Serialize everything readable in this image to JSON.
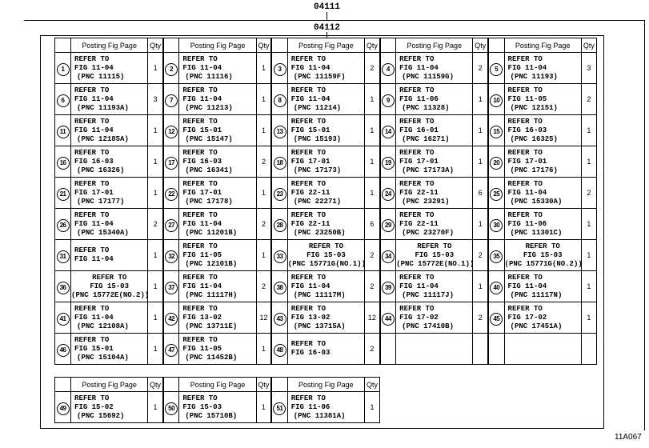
{
  "labels": {
    "top_code": "04111",
    "inner_code": "04112",
    "figure_id": "11A067"
  },
  "headers": {
    "posting": "Posting Fig Page",
    "qty": "Qty"
  },
  "main_rows": [
    [
      {
        "n": "1",
        "lines": [
          "REFER TO",
          "FIG 11-04",
          "(PNC 11115)"
        ],
        "qty": "1"
      },
      {
        "n": "2",
        "lines": [
          "REFER TO",
          "FIG 11-04",
          "(PNC 11116)"
        ],
        "qty": "1"
      },
      {
        "n": "3",
        "lines": [
          "REFER TO",
          "FIG 11-04",
          "(PNC 11159F)"
        ],
        "qty": "2"
      },
      {
        "n": "4",
        "lines": [
          "REFER TO",
          "FIG 11-04",
          "(PNC 11159G)"
        ],
        "qty": "2"
      },
      {
        "n": "5",
        "lines": [
          "REFER TO",
          "FIG 11-04",
          "(PNC 11193)"
        ],
        "qty": "3"
      }
    ],
    [
      {
        "n": "6",
        "lines": [
          "REFER TO",
          "FIG 11-04",
          "(PNC 11193A)"
        ],
        "qty": "3"
      },
      {
        "n": "7",
        "lines": [
          "REFER TO",
          "FIG 11-04",
          "(PNC 11213)"
        ],
        "qty": "1"
      },
      {
        "n": "8",
        "lines": [
          "REFER TO",
          "FIG 11-04",
          "(PNC 11214)"
        ],
        "qty": "1"
      },
      {
        "n": "9",
        "lines": [
          "REFER TO",
          "FIG 11-06",
          "(PNC 11328)"
        ],
        "qty": "1"
      },
      {
        "n": "10",
        "lines": [
          "REFER TO",
          "FIG 11-05",
          "(PNC 12151)"
        ],
        "qty": "2"
      }
    ],
    [
      {
        "n": "11",
        "lines": [
          "REFER TO",
          "FIG 11-04",
          "(PNC 12185A)"
        ],
        "qty": "1"
      },
      {
        "n": "12",
        "lines": [
          "REFER TO",
          "FIG 15-01",
          "(PNC 15147)"
        ],
        "qty": "1"
      },
      {
        "n": "13",
        "lines": [
          "REFER TO",
          "FIG 15-01",
          "(PNC 15193)"
        ],
        "qty": "1"
      },
      {
        "n": "14",
        "lines": [
          "REFER TO",
          "FIG 16-01",
          "(PNC 16271)"
        ],
        "qty": "1"
      },
      {
        "n": "15",
        "lines": [
          "REFER TO",
          "FIG 16-03",
          "(PNC 16325)"
        ],
        "qty": "1"
      }
    ],
    [
      {
        "n": "16",
        "lines": [
          "REFER TO",
          "FIG 16-03",
          "(PNC 16326)"
        ],
        "qty": "1"
      },
      {
        "n": "17",
        "lines": [
          "REFER TO",
          "FIG 16-03",
          "(PNC 16341)"
        ],
        "qty": "2"
      },
      {
        "n": "18",
        "lines": [
          "REFER TO",
          "FIG 17-01",
          "(PNC 17173)"
        ],
        "qty": "1"
      },
      {
        "n": "19",
        "lines": [
          "REFER TO",
          "FIG 17-01",
          "(PNC 17173A)"
        ],
        "qty": "1"
      },
      {
        "n": "20",
        "lines": [
          "REFER TO",
          "FIG 17-01",
          "(PNC 17176)"
        ],
        "qty": "1"
      }
    ],
    [
      {
        "n": "21",
        "lines": [
          "REFER TO",
          "FIG 17-01",
          "(PNC 17177)"
        ],
        "qty": "1"
      },
      {
        "n": "22",
        "lines": [
          "REFER TO",
          "FIG 17-01",
          "(PNC 17178)"
        ],
        "qty": "1"
      },
      {
        "n": "23",
        "lines": [
          "REFER TO",
          "FIG 22-11",
          "(PNC 22271)"
        ],
        "qty": "1"
      },
      {
        "n": "24",
        "lines": [
          "REFER TO",
          "FIG 22-11",
          "(PNC 23291)"
        ],
        "qty": "6"
      },
      {
        "n": "25",
        "lines": [
          "REFER TO",
          "FIG 11-04",
          "(PNC 15330A)"
        ],
        "qty": "2"
      }
    ],
    [
      {
        "n": "26",
        "lines": [
          "REFER TO",
          "FIG 11-04",
          "(PNC 15340A)"
        ],
        "qty": "2"
      },
      {
        "n": "27",
        "lines": [
          "REFER TO",
          "FIG 11-04",
          "(PNC 11201B)"
        ],
        "qty": "2"
      },
      {
        "n": "28",
        "lines": [
          "REFER TO",
          "FIG 22-11",
          "(PNC 23250B)"
        ],
        "qty": "6"
      },
      {
        "n": "29",
        "lines": [
          "REFER TO",
          "FIG 22-11",
          "(PNC 23270F)"
        ],
        "qty": "1"
      },
      {
        "n": "30",
        "lines": [
          "REFER TO",
          "FIG 11-06",
          "(PNC 11301C)"
        ],
        "qty": "1"
      }
    ],
    [
      {
        "n": "31",
        "lines": [
          "REFER TO",
          "FIG 11-04"
        ],
        "qty": "1"
      },
      {
        "n": "32",
        "lines": [
          "REFER TO",
          "FIG 11-05",
          "(PNC 12101B)"
        ],
        "qty": "1"
      },
      {
        "n": "33",
        "lines": [
          "REFER TO",
          "FIG 15-03",
          "(PNC 15771G(NO.1))"
        ],
        "qty": "2"
      },
      {
        "n": "34",
        "lines": [
          "REFER TO",
          "FIG 15-03",
          "(PNC 15772E(NO.1))"
        ],
        "qty": "2"
      },
      {
        "n": "35",
        "lines": [
          "REFER TO",
          "FIG 15-03",
          "(PNC 15771G(NO.2))"
        ],
        "qty": "1"
      }
    ],
    [
      {
        "n": "36",
        "lines": [
          "REFER TO",
          "FIG 15-03",
          "(PNC 15772E(NO.2))"
        ],
        "qty": "1"
      },
      {
        "n": "37",
        "lines": [
          "REFER TO",
          "FIG 11-04",
          "(PNC 11117H)"
        ],
        "qty": "2"
      },
      {
        "n": "38",
        "lines": [
          "REFER TO",
          "FIG 11-04",
          "(PNC 11117M)"
        ],
        "qty": "2"
      },
      {
        "n": "39",
        "lines": [
          "REFER TO",
          "FIG 11-04",
          "(PNC 11117J)"
        ],
        "qty": "1"
      },
      {
        "n": "40",
        "lines": [
          "REFER TO",
          "FIG 11-04",
          "(PNC 11117N)"
        ],
        "qty": "1"
      }
    ],
    [
      {
        "n": "41",
        "lines": [
          "REFER TO",
          "FIG 11-04",
          "(PNC 12108A)"
        ],
        "qty": "1"
      },
      {
        "n": "42",
        "lines": [
          "REFER TO",
          "FIG 13-02",
          "(PNC 13711E)"
        ],
        "qty": "12"
      },
      {
        "n": "43",
        "lines": [
          "REFER TO",
          "FIG 13-02",
          "(PNC 13715A)"
        ],
        "qty": "12"
      },
      {
        "n": "44",
        "lines": [
          "REFER TO",
          "FIG 17-02",
          "(PNC 17410B)"
        ],
        "qty": "2"
      },
      {
        "n": "45",
        "lines": [
          "REFER TO",
          "FIG 17-02",
          "(PNC 17451A)"
        ],
        "qty": "1"
      }
    ],
    [
      {
        "n": "46",
        "lines": [
          "REFER TO",
          "FIG 15-01",
          "(PNC 15104A)"
        ],
        "qty": "1"
      },
      {
        "n": "47",
        "lines": [
          "REFER TO",
          "FIG 11-05",
          "(PNC 11452B)"
        ],
        "qty": "1"
      },
      {
        "n": "48",
        "lines": [
          "REFER TO",
          "FIG 16-03"
        ],
        "qty": "2"
      },
      null,
      null
    ]
  ],
  "bottom_rows": [
    [
      {
        "n": "49",
        "lines": [
          "REFER TO",
          "FIG 15-02",
          "(PNC 15692)"
        ],
        "qty": "1"
      },
      {
        "n": "50",
        "lines": [
          "REFER TO",
          "FIG 15-03",
          "(PNC 15710B)"
        ],
        "qty": "1"
      },
      {
        "n": "51",
        "lines": [
          "REFER TO",
          "FIG 11-06",
          "(PNC 11381A)"
        ],
        "qty": "1"
      }
    ]
  ]
}
